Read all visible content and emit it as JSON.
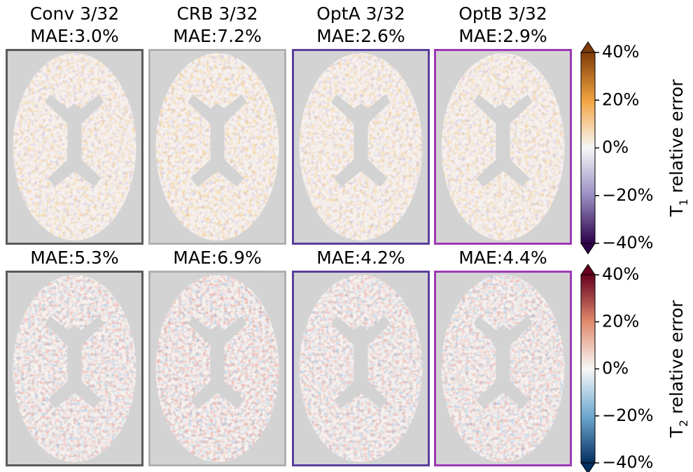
{
  "rows": [
    {
      "panels": [
        {
          "title": "Conv 3/32",
          "mae": "MAE:3.0%"
        },
        {
          "title": "CRB 3/32",
          "mae": "MAE:7.2%"
        },
        {
          "title": "OptA 3/32",
          "mae": "MAE:2.6%"
        },
        {
          "title": "OptB 3/32",
          "mae": "MAE:2.9%"
        }
      ]
    },
    {
      "panels": [
        {
          "mae": "MAE:5.3%"
        },
        {
          "mae": "MAE:6.9%"
        },
        {
          "mae": "MAE:4.2%"
        },
        {
          "mae": "MAE:4.4%"
        }
      ]
    }
  ],
  "colorbars": [
    {
      "label": {
        "prefix": "T",
        "subscript": "1",
        "suffix": " relative error"
      },
      "ticks": [
        "40%",
        "20%",
        "0%",
        "−20%",
        "−40%"
      ]
    },
    {
      "label": {
        "prefix": "T",
        "subscript": "2",
        "suffix": " relative error"
      },
      "ticks": [
        "40%",
        "20%",
        "0%",
        "−20%",
        "−40%"
      ]
    }
  ]
}
